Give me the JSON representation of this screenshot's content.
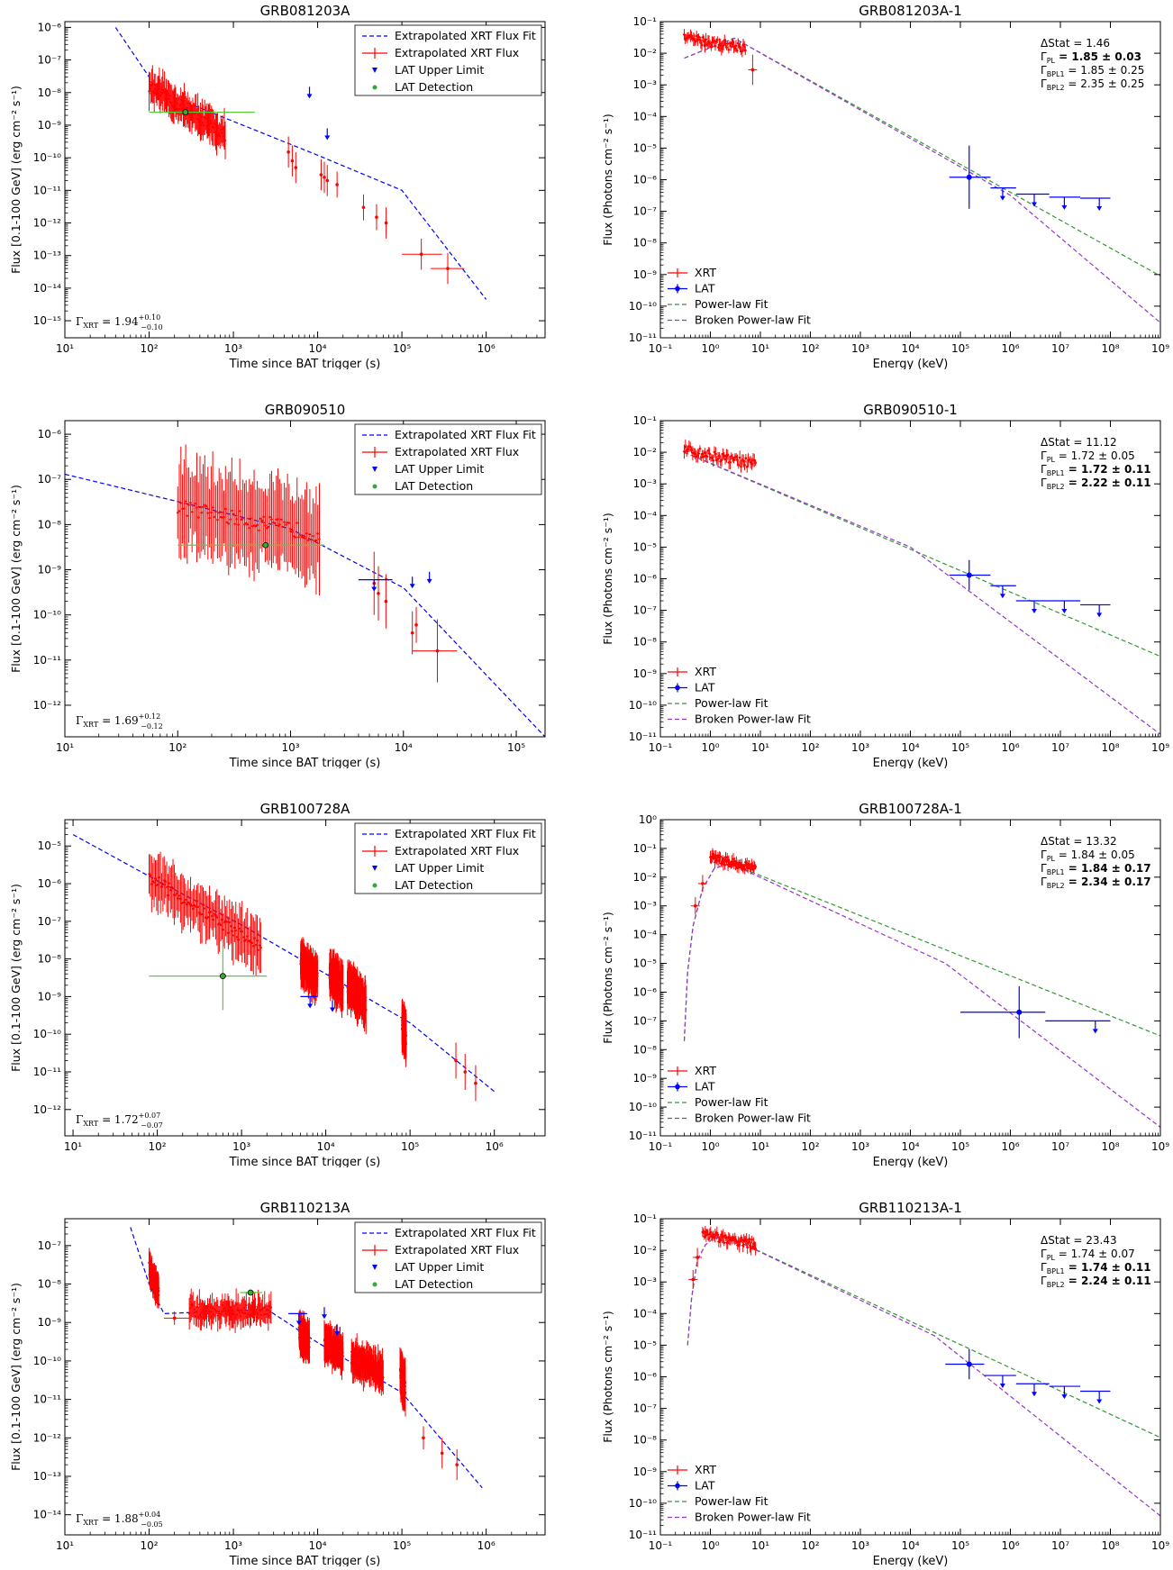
{
  "chart_data": [
    {
      "type": "scatter",
      "title": "GRB081203A",
      "xlabel": "Time since BAT trigger (s)",
      "ylabel": "Flux [0.1-100 GeV] (erg cm⁻² s⁻¹)",
      "xscale": "log",
      "yscale": "log",
      "xlim": [
        10,
        5000000
      ],
      "ylim": [
        3e-16,
        1.5e-06
      ],
      "legend": [
        "Extrapolated XRT Flux Fit",
        "Extrapolated XRT Flux",
        "LAT Upper Limit",
        "LAT Detection"
      ],
      "legend_position": "top-right",
      "annotation": "ΓXRT = 1.94 +0.10 −0.10",
      "fit": {
        "x": [
          40,
          100,
          120,
          1000,
          10000,
          100000,
          1000000
        ],
        "y": [
          1e-06,
          3e-08,
          1.2e-08,
          1.3e-09,
          1.2e-10,
          1e-11,
          4.5e-15
        ]
      },
      "flux_bands": [
        {
          "x1": 100,
          "x2": 800,
          "y_start": 1.5e-08,
          "y_end": 5e-10,
          "spread": 3.0
        }
      ],
      "flux_points": [
        {
          "x": 4500,
          "y": 1.5e-10,
          "err": 3.0
        },
        {
          "x": 5000,
          "y": 8e-11,
          "err": 3.0
        },
        {
          "x": 5500,
          "y": 5e-11,
          "err": 3.0
        },
        {
          "x": 11000,
          "y": 3e-11,
          "err": 3.0
        },
        {
          "x": 12000,
          "y": 2.5e-11,
          "err": 3.0
        },
        {
          "x": 13000,
          "y": 2e-11,
          "err": 3.0
        },
        {
          "x": 17000,
          "y": 1.5e-11,
          "err": 2.5
        },
        {
          "x": 35000,
          "y": 3e-12,
          "err": 2.5
        },
        {
          "x": 50000,
          "y": 1.5e-12,
          "err": 2.5
        },
        {
          "x": 65000,
          "y": 1e-12,
          "err": 3.0
        },
        {
          "x": 170000,
          "y": 1.1e-13,
          "err": 3.0,
          "xerr": [
            100000,
            300000
          ]
        },
        {
          "x": 350000,
          "y": 4e-14,
          "err": 3.0,
          "xerr": [
            220000,
            550000
          ]
        }
      ],
      "upper_limits": [
        {
          "x": 8000,
          "y": 1.5e-08
        },
        {
          "x": 13000,
          "y": 8e-10
        }
      ],
      "detections": [
        {
          "x": 270,
          "y": 2.5e-09,
          "xerr": [
            100,
            1800
          ]
        }
      ]
    },
    {
      "type": "scatter",
      "title": "GRB081203A-1",
      "xlabel": "Energy (keV)",
      "ylabel": "Flux (Photons cm⁻² s⁻¹)",
      "xscale": "log",
      "yscale": "log",
      "xlim": [
        0.1,
        1000000000.0
      ],
      "ylim": [
        1e-11,
        0.1
      ],
      "legend": [
        "XRT",
        "LAT",
        "Power-law Fit",
        "Broken Power-law Fit"
      ],
      "legend_position": "bottom-left",
      "stats": [
        "ΔStat = 1.46",
        "ΓPL = 1.85 ± 0.03",
        "ΓBPL1 = 1.85 ± 0.25",
        "ΓBPL2 = 2.35 ± 0.25"
      ],
      "bold_stats": [
        1
      ],
      "xrt_band": {
        "x1": 0.3,
        "x2": 5,
        "y1": 0.03,
        "y2": 0.015
      },
      "xrt_points": [
        {
          "x": 7,
          "y": 0.003,
          "err": 3.0
        }
      ],
      "pl_fit": {
        "x": [
          0.3,
          3,
          1000000000.0
        ],
        "y": [
          0.007,
          0.03,
          9e-10
        ]
      },
      "bpl_fit": {
        "x": [
          0.3,
          3,
          1000000.0,
          1000000000.0
        ],
        "y": [
          0.007,
          0.03,
          3.2e-07,
          3e-11
        ]
      },
      "lat_points": [
        {
          "x": 150000,
          "y": 1.2e-06,
          "xerr": [
            60000,
            400000
          ],
          "err": 10
        }
      ],
      "lat_ul": [
        {
          "x": 700000,
          "y": 5.5e-07,
          "xerr": [
            400000,
            1300000
          ]
        },
        {
          "x": 3000000,
          "y": 3.5e-07,
          "xerr": [
            1300000,
            6000000
          ]
        },
        {
          "x": 12000000,
          "y": 2.8e-07,
          "xerr": [
            6000000,
            25000000
          ]
        },
        {
          "x": 60000000,
          "y": 2.6e-07,
          "xerr": [
            25000000,
            100000000
          ]
        }
      ]
    },
    {
      "type": "scatter",
      "title": "GRB090510",
      "xlabel": "Time since BAT trigger (s)",
      "ylabel": "Flux [0.1-100 GeV] (erg cm⁻² s⁻¹)",
      "xscale": "log",
      "yscale": "log",
      "xlim": [
        10,
        180000
      ],
      "ylim": [
        2e-13,
        2e-06
      ],
      "legend": [
        "Extrapolated XRT Flux Fit",
        "Extrapolated XRT Flux",
        "LAT Upper Limit",
        "LAT Detection"
      ],
      "legend_position": "top-right",
      "annotation": "ΓXRT = 1.69 +0.12 −0.12",
      "fit": {
        "x": [
          10,
          1000,
          10000,
          180000
        ],
        "y": [
          1.3e-07,
          8e-09,
          4e-10,
          2e-13
        ]
      },
      "flux_bands": [
        {
          "x1": 100,
          "x2": 1800,
          "y_start": 2.5e-08,
          "y_end": 6e-09,
          "spread": 8.0
        }
      ],
      "flux_points": [
        {
          "x": 5500,
          "y": 5e-10,
          "err": 5.0
        },
        {
          "x": 6000,
          "y": 3e-10,
          "err": 4.0
        },
        {
          "x": 7000,
          "y": 2e-10,
          "err": 4.0
        },
        {
          "x": 12000,
          "y": 4e-11,
          "err": 3.0
        },
        {
          "x": 13000,
          "y": 6e-11,
          "err": 2.5
        },
        {
          "x": 20000,
          "y": 1.6e-11,
          "err": 5.0,
          "xerr": [
            12000,
            30000
          ]
        }
      ],
      "upper_limits": [
        {
          "x": 5500,
          "y": 6e-10,
          "xerr": [
            4000,
            8000
          ]
        },
        {
          "x": 12000,
          "y": 7e-10
        },
        {
          "x": 17000,
          "y": 9e-10
        }
      ],
      "detections": [
        {
          "x": 600,
          "y": 3.5e-09,
          "xerr": [
            100,
            2000
          ]
        }
      ]
    },
    {
      "type": "scatter",
      "title": "GRB090510-1",
      "xlabel": "Energy (keV)",
      "ylabel": "Flux (Photons cm⁻² s⁻¹)",
      "xscale": "log",
      "yscale": "log",
      "xlim": [
        0.1,
        1000000000.0
      ],
      "ylim": [
        1e-11,
        0.1
      ],
      "legend": [
        "XRT",
        "LAT",
        "Power-law Fit",
        "Broken Power-law Fit"
      ],
      "legend_position": "bottom-left",
      "stats": [
        "ΔStat = 11.12",
        "ΓPL = 1.72 ± 0.05",
        "ΓBPL1 = 1.72 ± 0.11",
        "ΓBPL2 = 2.22 ± 0.11"
      ],
      "bold_stats": [
        2,
        3
      ],
      "xrt_band": {
        "x1": 0.3,
        "x2": 8,
        "y1": 0.012,
        "y2": 0.004
      },
      "xrt_points": [],
      "pl_fit": {
        "x": [
          0.3,
          1000000000.0
        ],
        "y": [
          0.01,
          3.5e-09
        ]
      },
      "bpl_fit": {
        "x": [
          0.3,
          10000,
          1000000000.0
        ],
        "y": [
          0.01,
          1e-05,
          1.2e-11
        ]
      },
      "lat_points": [
        {
          "x": 150000,
          "y": 1.3e-06,
          "xerr": [
            60000,
            400000
          ],
          "err": 3.0
        }
      ],
      "lat_ul": [
        {
          "x": 700000,
          "y": 6e-07,
          "xerr": [
            400000,
            1300000
          ]
        },
        {
          "x": 3000000,
          "y": 2e-07,
          "xerr": [
            1300000,
            6000000
          ]
        },
        {
          "x": 12000000,
          "y": 2e-07,
          "xerr": [
            6000000,
            25000000
          ]
        },
        {
          "x": 60000000,
          "y": 1.5e-07,
          "xerr": [
            25000000,
            100000000
          ]
        }
      ]
    },
    {
      "type": "scatter",
      "title": "GRB100728A",
      "xlabel": "Time since BAT trigger (s)",
      "ylabel": "Flux [0.1-100 GeV] (erg cm⁻² s⁻¹)",
      "xscale": "log",
      "yscale": "log",
      "xlim": [
        8,
        4000000
      ],
      "ylim": [
        2e-13,
        5e-05
      ],
      "legend": [
        "Extrapolated XRT Flux Fit",
        "Extrapolated XRT Flux",
        "LAT Upper Limit",
        "LAT Detection"
      ],
      "legend_position": "top-right",
      "annotation": "ΓXRT = 1.72 +0.07 −0.07",
      "fit": {
        "x": [
          10,
          100,
          1000,
          10000,
          100000,
          1000000
        ],
        "y": [
          2e-05,
          1.2e-06,
          8e-08,
          4e-09,
          2e-10,
          3e-12
        ]
      },
      "flux_bands": [
        {
          "x1": 80,
          "x2": 1700,
          "y_start": 1.5e-06,
          "y_end": 2e-08,
          "spread": 4.0
        },
        {
          "x1": 5000,
          "x2": 8000,
          "y_start": 8e-09,
          "y_end": 3e-09,
          "spread": 3.0
        },
        {
          "x1": 11000,
          "x2": 16000,
          "y_start": 4e-09,
          "y_end": 1.5e-09,
          "spread": 3.0
        },
        {
          "x1": 18000,
          "x2": 30000,
          "y_start": 2e-09,
          "y_end": 6e-10,
          "spread": 3.0
        },
        {
          "x1": 80000,
          "x2": 90000,
          "y_start": 2e-10,
          "y_end": 8e-11,
          "spread": 3.0
        }
      ],
      "flux_points": [
        {
          "x": 350000,
          "y": 2e-11,
          "err": 3.0
        },
        {
          "x": 450000,
          "y": 1e-11,
          "err": 3.0
        },
        {
          "x": 600000,
          "y": 5e-12,
          "err": 3.0
        }
      ],
      "upper_limits": [
        {
          "x": 6500,
          "y": 1e-09,
          "xerr": [
            5000,
            8000
          ]
        },
        {
          "x": 12000,
          "y": 8e-10
        }
      ],
      "detections": [
        {
          "x": 600,
          "y": 3.5e-09,
          "xerr": [
            80,
            2000
          ],
          "err": 8.0
        }
      ]
    },
    {
      "type": "scatter",
      "title": "GRB100728A-1",
      "xlabel": "Energy (keV)",
      "ylabel": "Flux (Photons cm⁻² s⁻¹)",
      "xscale": "log",
      "yscale": "log",
      "xlim": [
        0.1,
        1000000000.0
      ],
      "ylim": [
        1e-11,
        1
      ],
      "legend": [
        "XRT",
        "LAT",
        "Power-law Fit",
        "Broken Power-law Fit"
      ],
      "legend_position": "bottom-left",
      "stats": [
        "ΔStat = 13.32",
        "ΓPL = 1.84 ± 0.05",
        "ΓBPL1 = 1.84 ± 0.17",
        "ΓBPL2 = 2.34 ± 0.17"
      ],
      "bold_stats": [
        2,
        3
      ],
      "xrt_band": {
        "x1": 1,
        "x2": 8,
        "y1": 0.05,
        "y2": 0.02
      },
      "xrt_points": [
        {
          "x": 0.5,
          "y": 0.001,
          "err": 2.0
        },
        {
          "x": 0.7,
          "y": 0.006,
          "err": 2.0
        }
      ],
      "pl_fit": {
        "x": [
          0.3,
          0.35,
          0.45,
          0.7,
          1.2,
          2.5,
          1000000000.0
        ],
        "y": [
          2e-08,
          5e-06,
          0.0002,
          0.004,
          0.02,
          0.03,
          3e-08
        ]
      },
      "bpl_fit": {
        "x": [
          0.3,
          0.35,
          0.45,
          0.7,
          1.2,
          2.5,
          50000,
          1000000000.0
        ],
        "y": [
          2e-08,
          5e-06,
          0.0002,
          0.004,
          0.02,
          0.03,
          1e-05,
          2e-11
        ]
      },
      "lat_points": [
        {
          "x": 1500000,
          "y": 2e-07,
          "xerr": [
            100000,
            5000000
          ],
          "err": 8.0
        }
      ],
      "lat_ul": [
        {
          "x": 50000000,
          "y": 1e-07,
          "xerr": [
            5000000,
            100000000
          ]
        }
      ]
    },
    {
      "type": "scatter",
      "title": "GRB110213A",
      "xlabel": "Time since BAT trigger (s)",
      "ylabel": "Flux [0.1-100 GeV] (erg cm⁻² s⁻¹)",
      "xscale": "log",
      "yscale": "log",
      "xlim": [
        10,
        5000000
      ],
      "ylim": [
        3e-15,
        5e-07
      ],
      "legend": [
        "Extrapolated XRT Flux Fit",
        "Extrapolated XRT Flux",
        "LAT Upper Limit",
        "LAT Detection"
      ],
      "legend_position": "top-right",
      "annotation": "ΓXRT = 1.88 +0.04 −0.05",
      "fit": {
        "x": [
          60,
          100,
          150,
          2500,
          10000,
          100000,
          900000
        ],
        "y": [
          3e-07,
          1e-08,
          1.7e-09,
          2.2e-09,
          3e-10,
          1.5e-11,
          5e-14
        ]
      },
      "flux_bands": [
        {
          "x1": 100,
          "x2": 130,
          "y_start": 2.5e-08,
          "y_end": 6e-09,
          "spread": 2.0
        },
        {
          "x1": 300,
          "x2": 2800,
          "y_start": 2e-09,
          "y_end": 2e-09,
          "spread": 2.0
        },
        {
          "x1": 6000,
          "x2": 8000,
          "y_start": 6e-10,
          "y_end": 3e-10,
          "spread": 2.5
        },
        {
          "x1": 12000,
          "x2": 20000,
          "y_start": 3e-10,
          "y_end": 1.5e-10,
          "spread": 2.5
        },
        {
          "x1": 25000,
          "x2": 60000,
          "y_start": 1.2e-10,
          "y_end": 5e-11,
          "spread": 2.5
        },
        {
          "x1": 95000,
          "x2": 110000,
          "y_start": 5e-11,
          "y_end": 2e-11,
          "spread": 3.0
        }
      ],
      "flux_points": [
        {
          "x": 200,
          "y": 1.3e-09,
          "err": 1.5,
          "xerr": [
            150,
            300
          ]
        },
        {
          "x": 180000,
          "y": 1e-12,
          "err": 2.0
        },
        {
          "x": 300000,
          "y": 4e-13,
          "err": 2.5
        },
        {
          "x": 450000,
          "y": 2e-13,
          "err": 2.5
        }
      ],
      "upper_limits": [
        {
          "x": 6000,
          "y": 1.7e-09,
          "xerr": [
            4500,
            7500
          ]
        },
        {
          "x": 12000,
          "y": 2.5e-09
        },
        {
          "x": 17000,
          "y": 9e-10
        }
      ],
      "detections": [
        {
          "x": 1600,
          "y": 6e-09,
          "xerr": [
            1200,
            2200
          ]
        }
      ]
    },
    {
      "type": "scatter",
      "title": "GRB110213A-1",
      "xlabel": "Energy (keV)",
      "ylabel": "Flux (Photons cm⁻² s⁻¹)",
      "xscale": "log",
      "yscale": "log",
      "xlim": [
        0.1,
        1000000000.0
      ],
      "ylim": [
        1e-11,
        0.1
      ],
      "legend": [
        "XRT",
        "LAT",
        "Power-law Fit",
        "Broken Power-law Fit"
      ],
      "legend_position": "bottom-left",
      "stats": [
        "ΔStat = 23.43",
        "ΓPL = 1.74 ± 0.07",
        "ΓBPL1 = 1.74 ± 0.11",
        "ΓBPL2 = 2.24 ± 0.11"
      ],
      "bold_stats": [
        2,
        3
      ],
      "xrt_band": {
        "x1": 0.7,
        "x2": 8,
        "y1": 0.03,
        "y2": 0.015
      },
      "xrt_points": [
        {
          "x": 0.45,
          "y": 0.0012,
          "err": 2.0
        },
        {
          "x": 0.55,
          "y": 0.006,
          "err": 2.0
        }
      ],
      "pl_fit": {
        "x": [
          0.35,
          0.42,
          0.55,
          0.8,
          1.2,
          2.5,
          1000000000.0
        ],
        "y": [
          1e-05,
          0.0003,
          0.005,
          0.015,
          0.025,
          0.025,
          1.2e-08
        ]
      },
      "bpl_fit": {
        "x": [
          0.35,
          0.42,
          0.55,
          0.8,
          1.2,
          2.5,
          30000,
          1000000000.0
        ],
        "y": [
          1e-05,
          0.0003,
          0.005,
          0.015,
          0.025,
          0.025,
          2e-05,
          4e-11
        ]
      },
      "lat_points": [
        {
          "x": 150000,
          "y": 2.5e-06,
          "xerr": [
            50000,
            300000
          ],
          "err": 3.0
        }
      ],
      "lat_ul": [
        {
          "x": 700000,
          "y": 1.1e-06,
          "xerr": [
            300000,
            1300000
          ]
        },
        {
          "x": 3000000,
          "y": 6e-07,
          "xerr": [
            1300000,
            6000000
          ]
        },
        {
          "x": 12000000,
          "y": 5e-07,
          "xerr": [
            6000000,
            25000000
          ]
        },
        {
          "x": 60000000,
          "y": 3.5e-07,
          "xerr": [
            25000000,
            100000000
          ]
        }
      ]
    }
  ]
}
